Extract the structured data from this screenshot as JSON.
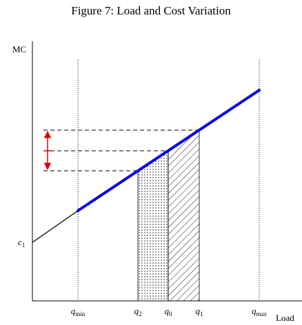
{
  "title": "Figure 7: Load and Cost Variation",
  "y_axis_label": "MC",
  "x_axis_label": "Load",
  "intercept_label": {
    "main": "c",
    "sub": "1"
  },
  "x_labels": [
    {
      "main": "q",
      "sub": "min"
    },
    {
      "main": "q",
      "sub": "2"
    },
    {
      "main": "q",
      "sub": "0"
    },
    {
      "main": "q",
      "sub": "1"
    },
    {
      "main": "q",
      "sub": "max"
    }
  ]
}
